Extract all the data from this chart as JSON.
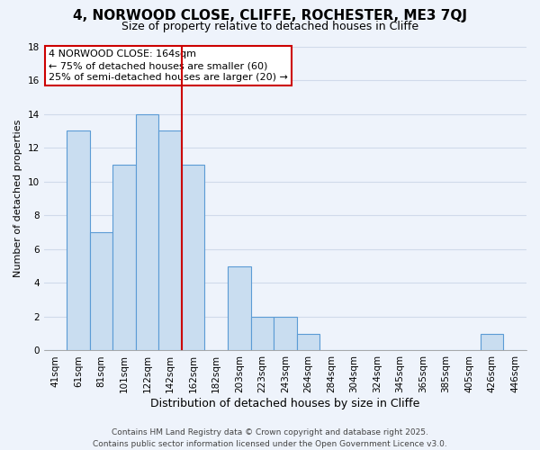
{
  "title": "4, NORWOOD CLOSE, CLIFFE, ROCHESTER, ME3 7QJ",
  "subtitle": "Size of property relative to detached houses in Cliffe",
  "xlabel": "Distribution of detached houses by size in Cliffe",
  "ylabel": "Number of detached properties",
  "bar_labels": [
    "41sqm",
    "61sqm",
    "81sqm",
    "101sqm",
    "122sqm",
    "142sqm",
    "162sqm",
    "182sqm",
    "203sqm",
    "223sqm",
    "243sqm",
    "264sqm",
    "284sqm",
    "304sqm",
    "324sqm",
    "345sqm",
    "365sqm",
    "385sqm",
    "405sqm",
    "426sqm",
    "446sqm"
  ],
  "bar_values": [
    0,
    13,
    7,
    11,
    14,
    13,
    11,
    0,
    5,
    2,
    2,
    1,
    0,
    0,
    0,
    0,
    0,
    0,
    0,
    1,
    0
  ],
  "bar_color": "#c9ddf0",
  "bar_edge_color": "#5b9bd5",
  "vline_x_index": 6,
  "vline_color": "#cc0000",
  "ylim": [
    0,
    18
  ],
  "yticks": [
    0,
    2,
    4,
    6,
    8,
    10,
    12,
    14,
    16,
    18
  ],
  "grid_color": "#d0daea",
  "bg_color": "#eef3fb",
  "annotation_title": "4 NORWOOD CLOSE: 164sqm",
  "annotation_line1": "← 75% of detached houses are smaller (60)",
  "annotation_line2": "25% of semi-detached houses are larger (20) →",
  "annotation_box_facecolor": "#ffffff",
  "annotation_box_edgecolor": "#cc0000",
  "footer1": "Contains HM Land Registry data © Crown copyright and database right 2025.",
  "footer2": "Contains public sector information licensed under the Open Government Licence v3.0.",
  "title_fontsize": 11,
  "subtitle_fontsize": 9,
  "xlabel_fontsize": 9,
  "ylabel_fontsize": 8,
  "tick_fontsize": 7.5,
  "annotation_fontsize": 8,
  "footer_fontsize": 6.5
}
